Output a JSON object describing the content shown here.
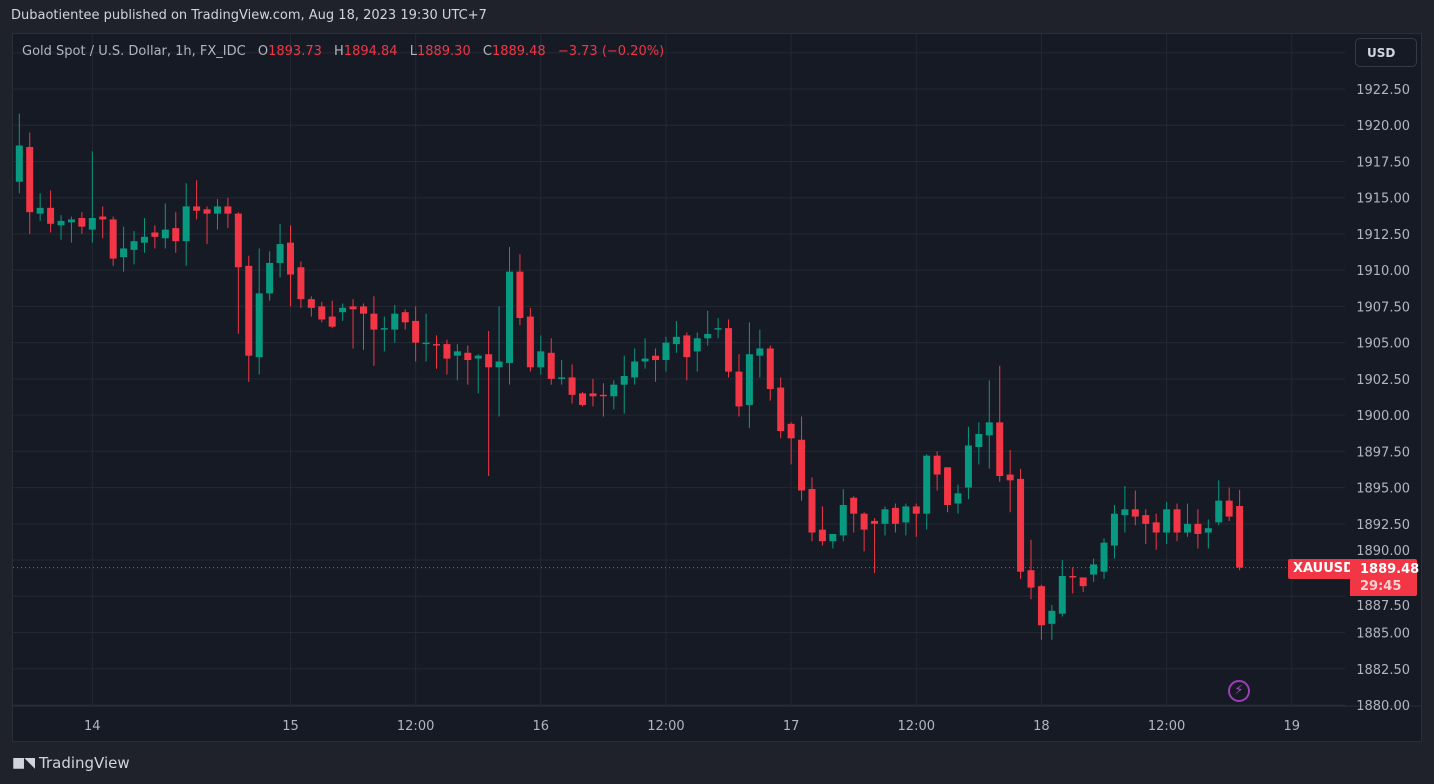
{
  "header": {
    "published": "Dubaotientee published on TradingView.com, Aug 18, 2023 19:30 UTC+7"
  },
  "legend": {
    "symbol": "Gold Spot / U.S. Dollar, 1h, FX_IDC",
    "o_label": "O",
    "o": "1893.73",
    "h_label": "H",
    "h": "1894.84",
    "l_label": "L",
    "l": "1889.30",
    "c_label": "C",
    "c": "1889.48",
    "change": "−3.73 (−0.20%)"
  },
  "currency_button": "USD",
  "price_tag": {
    "symbol": "XAUUSD",
    "price": "1889.48",
    "countdown": "29:45"
  },
  "footer": {
    "logo_text": "TradingView"
  },
  "icons": {
    "alert": "lightning-icon",
    "logo": "tradingview-logo-icon"
  },
  "colors": {
    "up": "#089981",
    "down": "#f23645",
    "background": "#161a25",
    "grid": "#242833"
  },
  "chart_data": {
    "type": "candlestick",
    "symbol": "XAUUSD",
    "interval": "1h",
    "ylim": [
      1880,
      1925
    ],
    "y_ticks": [
      "1922.50",
      "1920.00",
      "1917.50",
      "1915.00",
      "1912.50",
      "1910.00",
      "1907.50",
      "1905.00",
      "1902.50",
      "1900.00",
      "1897.50",
      "1895.00",
      "1892.50",
      "1890.00",
      "1887.50",
      "1885.00",
      "1882.50",
      "1880.00"
    ],
    "x_ticks": [
      "14",
      "15",
      "12:00",
      "16",
      "12:00",
      "17",
      "12:00",
      "18",
      "12:00",
      "19"
    ],
    "grid": true,
    "last_price": 1889.48,
    "ohlc_fields": [
      "open",
      "high",
      "low",
      "close"
    ],
    "candles": [
      [
        1916.1,
        1920.8,
        1915.3,
        1918.6
      ],
      [
        1918.5,
        1919.5,
        1912.5,
        1914.0
      ],
      [
        1913.9,
        1915.3,
        1913.4,
        1914.3
      ],
      [
        1914.3,
        1915.5,
        1912.6,
        1913.2
      ],
      [
        1913.1,
        1913.8,
        1912.1,
        1913.4
      ],
      [
        1913.3,
        1913.7,
        1911.9,
        1913.5
      ],
      [
        1913.6,
        1914.0,
        1912.5,
        1913.0
      ],
      [
        1912.8,
        1918.2,
        1911.9,
        1913.6
      ],
      [
        1913.7,
        1914.4,
        1912.2,
        1913.5
      ],
      [
        1913.5,
        1913.7,
        1910.3,
        1910.8
      ],
      [
        1910.9,
        1913.0,
        1909.9,
        1911.5
      ],
      [
        1911.4,
        1912.7,
        1910.4,
        1912.0
      ],
      [
        1911.9,
        1913.6,
        1911.2,
        1912.3
      ],
      [
        1912.6,
        1913.1,
        1911.5,
        1912.3
      ],
      [
        1912.2,
        1914.6,
        1911.5,
        1912.8
      ],
      [
        1912.9,
        1914.0,
        1911.2,
        1912.0
      ],
      [
        1912.0,
        1916.0,
        1910.3,
        1914.4
      ],
      [
        1914.4,
        1916.2,
        1913.5,
        1914.1
      ],
      [
        1914.2,
        1914.4,
        1911.8,
        1913.9
      ],
      [
        1913.9,
        1914.9,
        1912.8,
        1914.4
      ],
      [
        1914.4,
        1915.0,
        1912.9,
        1913.9
      ],
      [
        1913.9,
        1914.0,
        1905.6,
        1910.2
      ],
      [
        1910.3,
        1911.0,
        1902.3,
        1904.1
      ],
      [
        1904.0,
        1911.5,
        1902.8,
        1908.4
      ],
      [
        1908.4,
        1911.3,
        1907.9,
        1910.5
      ],
      [
        1910.5,
        1913.2,
        1909.5,
        1911.8
      ],
      [
        1911.9,
        1913.1,
        1907.5,
        1909.7
      ],
      [
        1910.2,
        1910.6,
        1907.4,
        1908.0
      ],
      [
        1908.0,
        1908.2,
        1906.8,
        1907.4
      ],
      [
        1907.5,
        1907.8,
        1906.4,
        1906.6
      ],
      [
        1906.8,
        1907.9,
        1906.0,
        1906.1
      ],
      [
        1907.1,
        1907.7,
        1906.5,
        1907.4
      ],
      [
        1907.5,
        1908.0,
        1904.6,
        1907.3
      ],
      [
        1907.5,
        1907.7,
        1904.5,
        1907.0
      ],
      [
        1907.0,
        1908.2,
        1903.4,
        1905.9
      ],
      [
        1905.9,
        1906.8,
        1904.4,
        1906.0
      ],
      [
        1905.9,
        1907.6,
        1905.0,
        1907.0
      ],
      [
        1907.1,
        1907.3,
        1905.9,
        1906.4
      ],
      [
        1906.5,
        1907.5,
        1903.7,
        1905.0
      ],
      [
        1904.9,
        1907.0,
        1903.7,
        1905.0
      ],
      [
        1904.9,
        1905.5,
        1903.2,
        1904.8
      ],
      [
        1904.9,
        1905.2,
        1902.8,
        1903.9
      ],
      [
        1904.1,
        1904.9,
        1902.4,
        1904.4
      ],
      [
        1904.3,
        1904.8,
        1902.1,
        1903.8
      ],
      [
        1903.9,
        1904.2,
        1901.5,
        1904.1
      ],
      [
        1904.2,
        1905.8,
        1895.8,
        1903.3
      ],
      [
        1903.3,
        1907.5,
        1899.9,
        1903.7
      ],
      [
        1903.6,
        1911.6,
        1902.1,
        1909.9
      ],
      [
        1909.9,
        1911.1,
        1906.2,
        1906.7
      ],
      [
        1906.8,
        1907.4,
        1903.0,
        1903.3
      ],
      [
        1903.3,
        1905.5,
        1902.8,
        1904.4
      ],
      [
        1904.3,
        1905.3,
        1902.1,
        1902.5
      ],
      [
        1902.5,
        1903.8,
        1902.1,
        1902.6
      ],
      [
        1902.6,
        1903.5,
        1900.8,
        1901.4
      ],
      [
        1901.5,
        1901.6,
        1900.6,
        1900.7
      ],
      [
        1901.5,
        1902.5,
        1900.6,
        1901.3
      ],
      [
        1901.4,
        1902.2,
        1899.9,
        1901.3
      ],
      [
        1901.3,
        1902.4,
        1900.4,
        1902.1
      ],
      [
        1902.1,
        1904.1,
        1900.1,
        1902.7
      ],
      [
        1902.6,
        1904.6,
        1902.1,
        1903.7
      ],
      [
        1903.7,
        1905.3,
        1903.2,
        1903.9
      ],
      [
        1904.1,
        1904.6,
        1902.3,
        1903.8
      ],
      [
        1903.8,
        1905.4,
        1903.0,
        1905.0
      ],
      [
        1904.9,
        1906.5,
        1904.3,
        1905.4
      ],
      [
        1905.5,
        1905.7,
        1902.4,
        1904.0
      ],
      [
        1904.4,
        1905.7,
        1903.0,
        1905.3
      ],
      [
        1905.3,
        1907.2,
        1904.8,
        1905.6
      ],
      [
        1905.9,
        1906.7,
        1905.3,
        1906.0
      ],
      [
        1906.0,
        1906.6,
        1902.6,
        1903.0
      ],
      [
        1903.0,
        1904.2,
        1899.9,
        1900.6
      ],
      [
        1900.7,
        1906.4,
        1899.1,
        1904.2
      ],
      [
        1904.1,
        1905.9,
        1902.6,
        1904.6
      ],
      [
        1904.6,
        1904.8,
        1901.0,
        1901.8
      ],
      [
        1901.9,
        1902.6,
        1898.4,
        1898.9
      ],
      [
        1899.4,
        1899.5,
        1896.6,
        1898.4
      ],
      [
        1898.3,
        1899.9,
        1894.1,
        1894.8
      ],
      [
        1894.9,
        1895.7,
        1891.3,
        1891.9
      ],
      [
        1892.1,
        1893.7,
        1891.0,
        1891.3
      ],
      [
        1891.3,
        1891.8,
        1890.8,
        1891.8
      ],
      [
        1891.7,
        1894.9,
        1891.3,
        1893.8
      ],
      [
        1894.3,
        1894.4,
        1891.9,
        1893.2
      ],
      [
        1893.2,
        1893.3,
        1890.6,
        1892.1
      ],
      [
        1892.7,
        1892.9,
        1889.1,
        1892.5
      ],
      [
        1892.5,
        1893.7,
        1891.7,
        1893.5
      ],
      [
        1893.6,
        1893.9,
        1891.9,
        1892.5
      ],
      [
        1892.6,
        1893.9,
        1891.7,
        1893.7
      ],
      [
        1893.7,
        1893.9,
        1891.6,
        1893.2
      ],
      [
        1893.2,
        1897.3,
        1892.1,
        1897.2
      ],
      [
        1897.2,
        1897.5,
        1894.8,
        1895.9
      ],
      [
        1896.4,
        1896.4,
        1893.3,
        1893.8
      ],
      [
        1893.9,
        1895.2,
        1893.2,
        1894.6
      ],
      [
        1895.0,
        1899.2,
        1894.2,
        1897.9
      ],
      [
        1897.8,
        1899.5,
        1896.6,
        1898.7
      ],
      [
        1898.6,
        1902.4,
        1896.3,
        1899.5
      ],
      [
        1899.5,
        1903.4,
        1895.4,
        1895.8
      ],
      [
        1895.9,
        1897.6,
        1893.3,
        1895.5
      ],
      [
        1895.6,
        1896.3,
        1888.7,
        1889.2
      ],
      [
        1889.3,
        1891.4,
        1887.3,
        1888.1
      ],
      [
        1888.2,
        1888.3,
        1884.5,
        1885.5
      ],
      [
        1885.6,
        1886.9,
        1884.5,
        1886.5
      ],
      [
        1886.3,
        1890.0,
        1886.1,
        1888.9
      ],
      [
        1888.9,
        1889.5,
        1887.7,
        1888.8
      ],
      [
        1888.8,
        1888.8,
        1887.8,
        1888.2
      ],
      [
        1889.0,
        1890.1,
        1888.5,
        1889.7
      ],
      [
        1889.2,
        1891.5,
        1888.7,
        1891.2
      ],
      [
        1891.0,
        1893.8,
        1890.1,
        1893.2
      ],
      [
        1893.1,
        1895.1,
        1891.9,
        1893.5
      ],
      [
        1893.5,
        1894.8,
        1892.4,
        1893.0
      ],
      [
        1893.1,
        1893.5,
        1891.1,
        1892.5
      ],
      [
        1892.6,
        1893.2,
        1890.7,
        1891.9
      ],
      [
        1891.9,
        1894.0,
        1891.1,
        1893.5
      ],
      [
        1893.5,
        1893.9,
        1891.3,
        1891.9
      ],
      [
        1891.9,
        1893.9,
        1891.6,
        1892.5
      ],
      [
        1892.5,
        1893.5,
        1890.8,
        1891.8
      ],
      [
        1891.9,
        1892.8,
        1890.8,
        1892.2
      ],
      [
        1892.6,
        1895.5,
        1892.4,
        1894.1
      ],
      [
        1894.1,
        1895.0,
        1892.7,
        1893.0
      ],
      [
        1893.73,
        1894.84,
        1889.3,
        1889.48
      ]
    ]
  }
}
